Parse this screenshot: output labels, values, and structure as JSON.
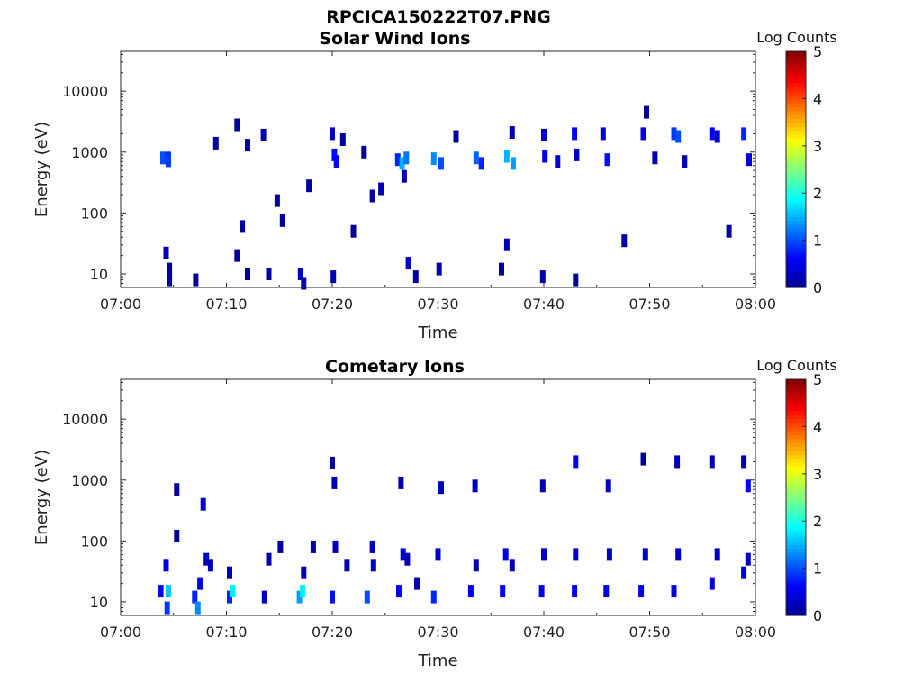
{
  "figure_title": "RPCICA150222T07.PNG",
  "colormap": [
    "#00008f",
    "#0000ff",
    "#0080ff",
    "#00ffff",
    "#80ff80",
    "#ffff00",
    "#ff8000",
    "#ff0000",
    "#800000"
  ],
  "chart_data": [
    {
      "type": "heatmap",
      "title": "Solar Wind Ions",
      "xlabel": "Time",
      "ylabel": "Energy (eV)",
      "xlim": [
        "07:00",
        "08:00"
      ],
      "ylim": [
        6,
        45000
      ],
      "yscale": "log",
      "xticks": [
        "07:00",
        "07:10",
        "07:20",
        "07:30",
        "07:40",
        "07:50",
        "08:00"
      ],
      "yticks": [
        {
          "value": 10,
          "label": "10"
        },
        {
          "value": 100,
          "label": "100"
        },
        {
          "value": 1000,
          "label": "1000"
        },
        {
          "value": 10000,
          "label": "10000"
        }
      ],
      "colorbar": {
        "label": "Log Counts",
        "range": [
          0,
          5
        ],
        "ticks": [
          "0",
          "1",
          "2",
          "3",
          "4",
          "5"
        ]
      },
      "cells": [
        [
          4.0,
          800,
          1.0
        ],
        [
          4.5,
          800,
          0.8
        ],
        [
          4.5,
          720,
          0.9
        ],
        [
          4.3,
          22,
          0.2
        ],
        [
          4.6,
          12,
          0.1
        ],
        [
          4.6,
          8,
          0.1
        ],
        [
          7.1,
          8,
          0.1
        ],
        [
          9.0,
          1400,
          0.1
        ],
        [
          11.0,
          2800,
          0.1
        ],
        [
          11.5,
          60,
          0.1
        ],
        [
          12.0,
          1300,
          0.1
        ],
        [
          11.0,
          20,
          0.1
        ],
        [
          12.0,
          10,
          0.1
        ],
        [
          13.5,
          1900,
          0.2
        ],
        [
          14.0,
          10,
          0.1
        ],
        [
          14.8,
          160,
          0.1
        ],
        [
          15.3,
          75,
          0.1
        ],
        [
          17.0,
          10,
          0.3
        ],
        [
          17.3,
          7,
          0.2
        ],
        [
          17.8,
          280,
          0.1
        ],
        [
          20.0,
          2000,
          0.3
        ],
        [
          20.2,
          900,
          0.7
        ],
        [
          20.4,
          700,
          0.6
        ],
        [
          20.1,
          9,
          0.2
        ],
        [
          21.0,
          1600,
          0.1
        ],
        [
          22.0,
          50,
          0.1
        ],
        [
          23.0,
          1000,
          0.1
        ],
        [
          23.8,
          190,
          0.1
        ],
        [
          24.6,
          250,
          0.2
        ],
        [
          26.2,
          750,
          0.8
        ],
        [
          26.6,
          650,
          1.5
        ],
        [
          27.0,
          800,
          1.2
        ],
        [
          26.8,
          400,
          0.2
        ],
        [
          27.2,
          15,
          0.3
        ],
        [
          27.9,
          9,
          0.1
        ],
        [
          29.6,
          780,
          1.3
        ],
        [
          30.3,
          650,
          1.0
        ],
        [
          30.1,
          12,
          0.2
        ],
        [
          31.7,
          1800,
          0.1
        ],
        [
          33.6,
          800,
          1.1
        ],
        [
          34.1,
          650,
          0.8
        ],
        [
          36.5,
          850,
          1.5
        ],
        [
          37.1,
          650,
          1.4
        ],
        [
          36.5,
          30,
          0.2
        ],
        [
          36.0,
          12,
          0.1
        ],
        [
          37.0,
          2100,
          0.2
        ],
        [
          40.0,
          1900,
          0.4
        ],
        [
          40.1,
          850,
          0.5
        ],
        [
          39.9,
          9,
          0.2
        ],
        [
          41.3,
          700,
          0.4
        ],
        [
          42.9,
          2000,
          0.6
        ],
        [
          43.1,
          900,
          0.3
        ],
        [
          43.0,
          8,
          0.1
        ],
        [
          45.6,
          2000,
          0.4
        ],
        [
          46.0,
          750,
          0.7
        ],
        [
          47.6,
          35,
          0.1
        ],
        [
          49.4,
          2000,
          0.5
        ],
        [
          49.7,
          4500,
          0.1
        ],
        [
          50.5,
          800,
          0.2
        ],
        [
          52.3,
          2000,
          0.9
        ],
        [
          52.7,
          1800,
          1.0
        ],
        [
          53.3,
          700,
          0.2
        ],
        [
          55.9,
          2000,
          0.6
        ],
        [
          56.4,
          1800,
          0.4
        ],
        [
          57.5,
          50,
          0.1
        ],
        [
          58.9,
          2000,
          0.8
        ],
        [
          59.4,
          750,
          0.4
        ]
      ]
    },
    {
      "type": "heatmap",
      "title": "Cometary Ions",
      "xlabel": "Time",
      "ylabel": "Energy (eV)",
      "xlim": [
        "07:00",
        "08:00"
      ],
      "ylim": [
        6,
        45000
      ],
      "yscale": "log",
      "xticks": [
        "07:00",
        "07:10",
        "07:20",
        "07:30",
        "07:40",
        "07:50",
        "08:00"
      ],
      "yticks": [
        {
          "value": 10,
          "label": "10"
        },
        {
          "value": 100,
          "label": "100"
        },
        {
          "value": 1000,
          "label": "1000"
        },
        {
          "value": 10000,
          "label": "10000"
        }
      ],
      "colorbar": {
        "label": "Log Counts",
        "range": [
          0,
          5
        ],
        "ticks": [
          "0",
          "1",
          "2",
          "3",
          "4",
          "5"
        ]
      },
      "cells": [
        [
          3.8,
          15,
          0.6
        ],
        [
          4.3,
          40,
          0.5
        ],
        [
          4.5,
          15,
          1.6
        ],
        [
          4.4,
          8,
          0.9
        ],
        [
          5.3,
          700,
          0.1
        ],
        [
          5.3,
          120,
          0.1
        ],
        [
          7.0,
          12,
          0.8
        ],
        [
          7.3,
          8,
          1.3
        ],
        [
          7.5,
          20,
          0.5
        ],
        [
          7.8,
          400,
          0.4
        ],
        [
          8.1,
          50,
          0.3
        ],
        [
          8.5,
          40,
          0.2
        ],
        [
          10.3,
          12,
          0.8
        ],
        [
          10.6,
          15,
          1.8
        ],
        [
          10.3,
          30,
          0.3
        ],
        [
          13.6,
          12,
          0.3
        ],
        [
          14.0,
          50,
          0.2
        ],
        [
          15.1,
          80,
          0.1
        ],
        [
          16.9,
          12,
          1.4
        ],
        [
          17.2,
          15,
          1.8
        ],
        [
          17.3,
          30,
          0.2
        ],
        [
          18.2,
          80,
          0.2
        ],
        [
          20.0,
          12,
          0.7
        ],
        [
          20.3,
          80,
          0.3
        ],
        [
          20.2,
          900,
          0.2
        ],
        [
          20.0,
          1900,
          0.1
        ],
        [
          21.4,
          40,
          0.2
        ],
        [
          23.3,
          12,
          1.0
        ],
        [
          23.9,
          40,
          0.3
        ],
        [
          23.8,
          80,
          0.3
        ],
        [
          26.3,
          15,
          0.6
        ],
        [
          26.7,
          60,
          0.4
        ],
        [
          26.5,
          900,
          0.2
        ],
        [
          27.1,
          50,
          0.2
        ],
        [
          28.0,
          20,
          0.2
        ],
        [
          29.6,
          12,
          0.8
        ],
        [
          30.0,
          60,
          0.3
        ],
        [
          30.3,
          750,
          0.2
        ],
        [
          33.1,
          15,
          0.5
        ],
        [
          33.6,
          40,
          0.2
        ],
        [
          33.5,
          800,
          0.2
        ],
        [
          36.1,
          15,
          0.6
        ],
        [
          36.4,
          60,
          0.4
        ],
        [
          37.0,
          40,
          0.2
        ],
        [
          39.8,
          15,
          0.5
        ],
        [
          40.0,
          60,
          0.3
        ],
        [
          39.9,
          800,
          0.2
        ],
        [
          42.9,
          15,
          0.5
        ],
        [
          43.0,
          60,
          0.3
        ],
        [
          43.0,
          2000,
          0.5
        ],
        [
          45.9,
          15,
          0.5
        ],
        [
          46.2,
          60,
          0.3
        ],
        [
          46.1,
          800,
          0.3
        ],
        [
          49.2,
          15,
          0.5
        ],
        [
          49.6,
          60,
          0.3
        ],
        [
          49.4,
          2200,
          0.1
        ],
        [
          52.3,
          15,
          0.4
        ],
        [
          52.7,
          60,
          0.3
        ],
        [
          52.6,
          2000,
          0.2
        ],
        [
          55.9,
          20,
          0.4
        ],
        [
          56.4,
          60,
          0.3
        ],
        [
          55.9,
          2000,
          0.2
        ],
        [
          58.9,
          30,
          0.4
        ],
        [
          59.3,
          50,
          0.3
        ],
        [
          59.3,
          800,
          0.6
        ],
        [
          58.9,
          2000,
          0.2
        ]
      ]
    }
  ]
}
